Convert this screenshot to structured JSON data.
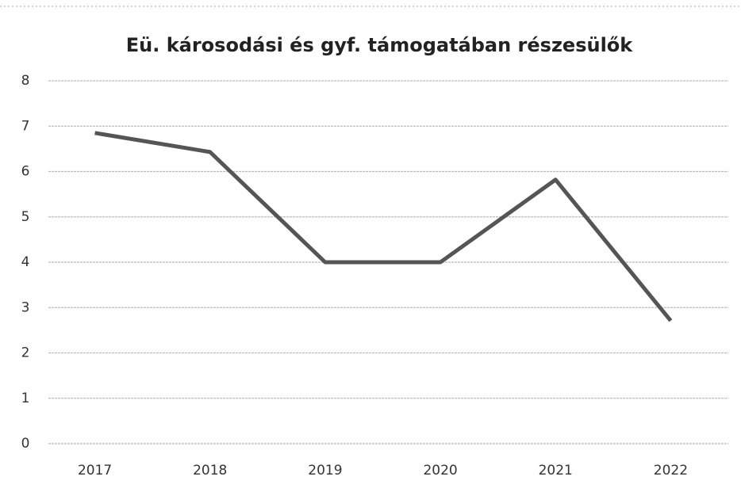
{
  "chart_data": {
    "type": "line",
    "title": "Eü. károsodási és gyf. támogatában részesülők",
    "categories": [
      "2017",
      "2018",
      "2019",
      "2020",
      "2021",
      "2022"
    ],
    "series": [
      {
        "name": null,
        "color": "#555555",
        "values": [
          6.85,
          6.43,
          4,
          4,
          5.82,
          2.71
        ]
      }
    ],
    "ylim": [
      0,
      8
    ],
    "yticks": [
      0,
      1,
      2,
      3,
      4,
      5,
      6,
      7,
      8
    ],
    "grid": true
  }
}
